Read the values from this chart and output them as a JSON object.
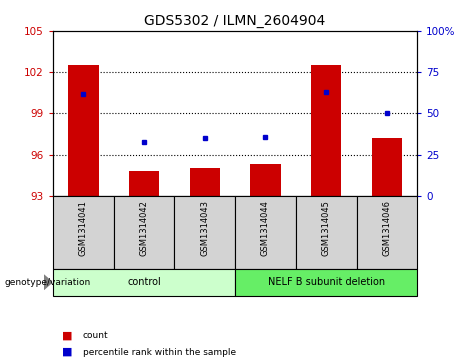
{
  "title": "GDS5302 / ILMN_2604904",
  "samples": [
    "GSM1314041",
    "GSM1314042",
    "GSM1314043",
    "GSM1314044",
    "GSM1314045",
    "GSM1314046"
  ],
  "count_values": [
    102.5,
    94.8,
    95.0,
    95.3,
    102.5,
    97.2
  ],
  "percentile_values": [
    62,
    33,
    35,
    36,
    63,
    50
  ],
  "ylim_left": [
    93,
    105
  ],
  "yticks_left": [
    93,
    96,
    99,
    102,
    105
  ],
  "ylim_right": [
    0,
    100
  ],
  "yticks_right": [
    0,
    25,
    50,
    75,
    100
  ],
  "groups": [
    {
      "label": "control",
      "samples": [
        0,
        1,
        2
      ],
      "color": "#ccffcc"
    },
    {
      "label": "NELF B subunit deletion",
      "samples": [
        3,
        4,
        5
      ],
      "color": "#66ee66"
    }
  ],
  "bar_color": "#cc0000",
  "dot_color": "#0000cc",
  "bar_bottom": 93,
  "grid_color": "#000000",
  "legend_items": [
    {
      "label": "count",
      "color": "#cc0000"
    },
    {
      "label": "percentile rank within the sample",
      "color": "#0000cc"
    }
  ],
  "genotype_label": "genotype/variation",
  "ylabel_left_color": "#cc0000",
  "ylabel_right_color": "#0000cc",
  "sample_box_color": "#d3d3d3",
  "title_fontsize": 10,
  "tick_fontsize": 7.5,
  "label_fontsize": 7.5
}
